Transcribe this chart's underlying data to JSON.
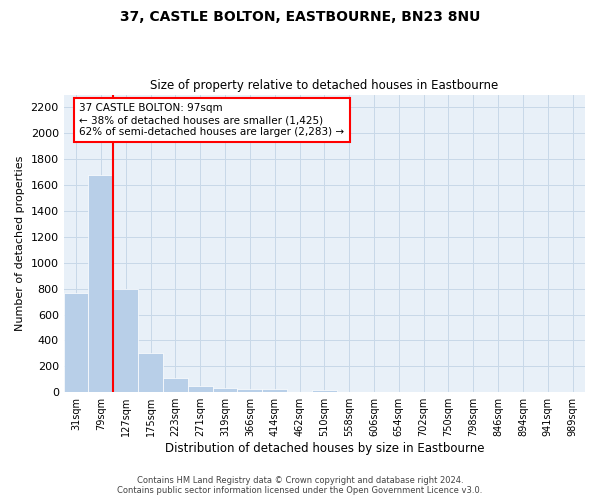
{
  "title": "37, CASTLE BOLTON, EASTBOURNE, BN23 8NU",
  "subtitle": "Size of property relative to detached houses in Eastbourne",
  "xlabel": "Distribution of detached houses by size in Eastbourne",
  "ylabel": "Number of detached properties",
  "categories": [
    "31sqm",
    "79sqm",
    "127sqm",
    "175sqm",
    "223sqm",
    "271sqm",
    "319sqm",
    "366sqm",
    "414sqm",
    "462sqm",
    "510sqm",
    "558sqm",
    "606sqm",
    "654sqm",
    "702sqm",
    "750sqm",
    "798sqm",
    "846sqm",
    "894sqm",
    "941sqm",
    "989sqm"
  ],
  "values": [
    770,
    1680,
    795,
    300,
    110,
    45,
    32,
    27,
    22,
    0,
    20,
    0,
    0,
    0,
    0,
    0,
    0,
    0,
    0,
    0,
    0
  ],
  "bar_color": "#b8cfe8",
  "grid_color": "#c8d8e8",
  "bg_color": "#e8f0f8",
  "vline_color": "red",
  "vline_x_index": 1,
  "annotation_text": "37 CASTLE BOLTON: 97sqm\n← 38% of detached houses are smaller (1,425)\n62% of semi-detached houses are larger (2,283) →",
  "ylim": [
    0,
    2300
  ],
  "yticks": [
    0,
    200,
    400,
    600,
    800,
    1000,
    1200,
    1400,
    1600,
    1800,
    2000,
    2200
  ],
  "footer_line1": "Contains HM Land Registry data © Crown copyright and database right 2024.",
  "footer_line2": "Contains public sector information licensed under the Open Government Licence v3.0."
}
